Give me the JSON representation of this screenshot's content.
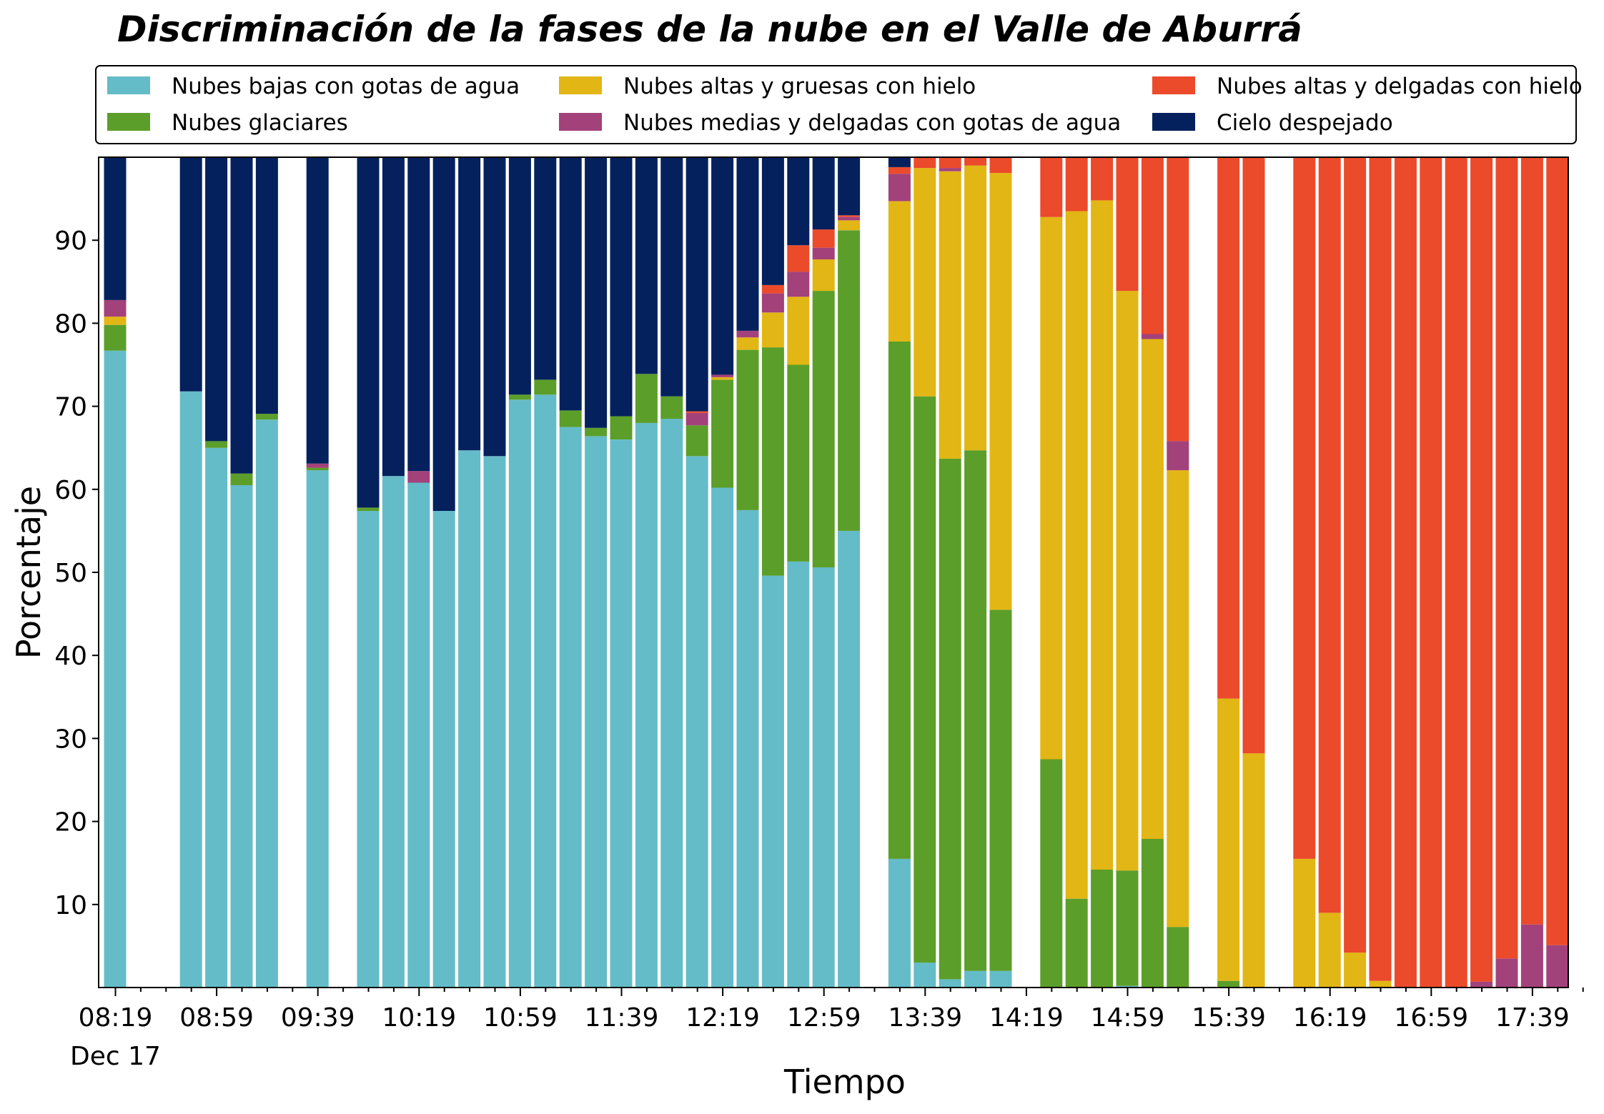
{
  "chart_data": {
    "type": "bar",
    "stacked": true,
    "title": "Discriminación de la fases de la nube en el Valle de Aburrá",
    "xlabel": "Tiempo",
    "ylabel": "Porcentaje",
    "ylim": [
      0,
      100
    ],
    "yticks": [
      10,
      20,
      30,
      40,
      50,
      60,
      70,
      80,
      90
    ],
    "xtick_labels": [
      "08:19",
      "08:59",
      "09:39",
      "10:19",
      "10:59",
      "11:39",
      "12:19",
      "12:59",
      "13:39",
      "14:19",
      "14:59",
      "15:39",
      "16:19",
      "16:59",
      "17:39"
    ],
    "xtick_sublabel": "Dec 17",
    "legend_position": "top",
    "categories": [
      "08:19",
      "08:29",
      "08:39",
      "08:49",
      "08:59",
      "09:09",
      "09:19",
      "09:29",
      "09:39",
      "09:49",
      "09:59",
      "10:09",
      "10:19",
      "10:29",
      "10:39",
      "10:49",
      "10:59",
      "11:09",
      "11:19",
      "11:29",
      "11:39",
      "11:49",
      "11:59",
      "12:09",
      "12:19",
      "12:29",
      "12:39",
      "12:49",
      "12:59",
      "13:09",
      "13:19",
      "13:29",
      "13:39",
      "13:49",
      "13:59",
      "14:09",
      "14:19",
      "14:29",
      "14:39",
      "14:49",
      "14:59",
      "15:09",
      "15:19",
      "15:29",
      "15:39",
      "15:49",
      "15:59",
      "16:09",
      "16:19",
      "16:29",
      "16:39",
      "16:49",
      "16:59",
      "17:09",
      "17:19",
      "17:29",
      "17:39",
      "17:49",
      "17:59"
    ],
    "series": [
      {
        "name": "Nubes bajas con gotas de agua",
        "color": "#64BCC8",
        "values": [
          76.7,
          null,
          null,
          71.8,
          65.0,
          60.5,
          68.4,
          null,
          62.3,
          null,
          57.4,
          61.6,
          60.8,
          57.4,
          64.7,
          64.0,
          70.8,
          71.4,
          67.5,
          66.4,
          66.0,
          68.0,
          68.5,
          64.0,
          60.2,
          57.5,
          49.6,
          51.3,
          50.6,
          55.0,
          null,
          15.5,
          3.0,
          1.0,
          2.0,
          2.0,
          null,
          0,
          0,
          0,
          0.2,
          0,
          0,
          null,
          0,
          0,
          null,
          0,
          0,
          0,
          0,
          0,
          0,
          0,
          0,
          0,
          0,
          0,
          0
        ]
      },
      {
        "name": "Nubes glaciares",
        "color": "#5C9E2A",
        "values": [
          3.1,
          null,
          null,
          0,
          0.8,
          1.4,
          0.7,
          null,
          0.3,
          null,
          0.4,
          0,
          0,
          0,
          0,
          0,
          0.6,
          1.8,
          2.0,
          1.0,
          2.8,
          5.9,
          2.7,
          3.7,
          13.0,
          19.3,
          27.5,
          23.7,
          33.3,
          36.2,
          null,
          62.3,
          68.2,
          62.7,
          62.7,
          43.5,
          null,
          27.5,
          10.7,
          14.2,
          13.9,
          17.9,
          7.3,
          null,
          0.8,
          0,
          null,
          0,
          0,
          0,
          0,
          0,
          0,
          0,
          0,
          0,
          0,
          0,
          0
        ]
      },
      {
        "name": "Nubes altas y gruesas con hielo",
        "color": "#E2B614",
        "values": [
          1.0,
          null,
          null,
          0,
          0,
          0,
          0,
          null,
          0,
          null,
          0,
          0,
          0,
          0,
          0,
          0,
          0,
          0,
          0,
          0,
          0,
          0,
          0,
          0,
          0.3,
          1.5,
          4.2,
          8.2,
          3.8,
          1.2,
          null,
          16.9,
          27.5,
          34.6,
          34.3,
          52.6,
          null,
          65.3,
          82.8,
          80.6,
          69.8,
          60.2,
          55.0,
          null,
          34.0,
          28.2,
          null,
          15.5,
          9.0,
          4.2,
          0.8,
          0,
          0,
          0,
          0,
          0,
          0,
          0,
          0
        ]
      },
      {
        "name": "Nubes medias y delgadas con gotas de agua",
        "color": "#A3417B",
        "values": [
          2.0,
          null,
          null,
          0,
          0,
          0,
          0,
          null,
          0.5,
          null,
          0,
          0,
          1.4,
          0,
          0,
          0,
          0,
          0,
          0,
          0,
          0,
          0,
          0,
          1.5,
          0.3,
          0.8,
          2.3,
          3.0,
          1.4,
          0.4,
          null,
          3.3,
          0,
          0.4,
          0,
          0,
          null,
          0,
          0,
          0,
          0,
          0.6,
          3.5,
          null,
          0,
          0,
          null,
          0,
          0,
          0,
          0,
          0,
          0,
          0,
          0.7,
          3.5,
          7.6,
          5.1,
          0
        ]
      },
      {
        "name": "Nubes altas y delgadas con hielo",
        "color": "#EB4A2B",
        "values": [
          0,
          null,
          null,
          0,
          0,
          0,
          0,
          null,
          0,
          null,
          0,
          0,
          0,
          0,
          0,
          0,
          0,
          0,
          0,
          0,
          0,
          0,
          0,
          0.2,
          0,
          0,
          1.0,
          3.2,
          2.2,
          0.2,
          null,
          0.8,
          1.3,
          1.3,
          1.0,
          1.9,
          null,
          7.2,
          6.5,
          5.2,
          16.1,
          21.3,
          34.2,
          null,
          65.2,
          71.8,
          null,
          84.5,
          91.0,
          95.8,
          99.2,
          100,
          100,
          100,
          99.3,
          96.5,
          92.4,
          94.9,
          0
        ]
      },
      {
        "name": "Cielo despejado",
        "color": "#04215D",
        "values": [
          17.2,
          null,
          null,
          28.2,
          34.2,
          38.1,
          30.9,
          null,
          36.9,
          null,
          42.2,
          38.4,
          37.8,
          42.6,
          35.3,
          36.0,
          28.6,
          26.8,
          30.5,
          32.6,
          31.2,
          26.1,
          28.8,
          30.6,
          26.2,
          20.9,
          15.4,
          10.6,
          8.7,
          7.0,
          null,
          1.2,
          0,
          0,
          0,
          0,
          null,
          0,
          0,
          0,
          0,
          0,
          0,
          null,
          0,
          0,
          null,
          0,
          0,
          0,
          0,
          0,
          0,
          0,
          0,
          0,
          0,
          0,
          0
        ]
      }
    ]
  }
}
